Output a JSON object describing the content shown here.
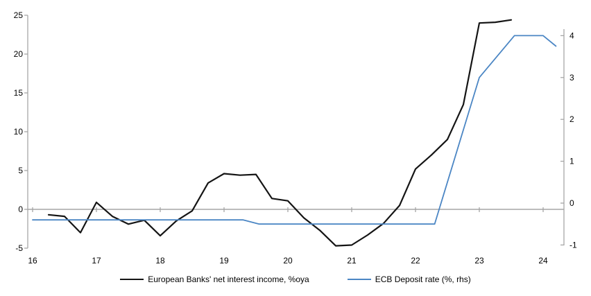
{
  "chart_data": {
    "type": "line",
    "title": "",
    "legend_position": "bottom",
    "grid": "zero-line-only",
    "background_color": "#ffffff",
    "axis_color": "#a6a6a6",
    "x_axis": {
      "ticks": [
        16,
        17,
        18,
        19,
        20,
        21,
        22,
        23,
        24
      ],
      "range": [
        16,
        24.3
      ]
    },
    "y_axis_left": {
      "ticks": [
        -5,
        0,
        5,
        10,
        15,
        20,
        25
      ],
      "range": [
        -5,
        25
      ]
    },
    "y_axis_right": {
      "ticks": [
        -1,
        0,
        1,
        2,
        3,
        4
      ],
      "range": [
        -1,
        4.17
      ]
    },
    "series": [
      {
        "name": "European Banks' net interest income, %oya",
        "color": "#141414",
        "width": 2.2,
        "axis": "left",
        "x": [
          16.25,
          16.5,
          16.75,
          17.0,
          17.25,
          17.5,
          17.75,
          18.0,
          18.25,
          18.5,
          18.75,
          19.0,
          19.25,
          19.5,
          19.75,
          20.0,
          20.25,
          20.5,
          20.75,
          21.0,
          21.25,
          21.5,
          21.75,
          22.0,
          22.25,
          22.5,
          22.75,
          23.0,
          23.25,
          23.5
        ],
        "values": [
          -0.7,
          -0.9,
          -3.0,
          0.9,
          -0.9,
          -1.9,
          -1.4,
          -3.4,
          -1.5,
          -0.2,
          3.4,
          4.6,
          4.4,
          4.5,
          1.4,
          1.1,
          -1.1,
          -2.7,
          -4.7,
          -4.6,
          -3.3,
          -1.8,
          0.5,
          5.2,
          7.0,
          9.0,
          13.5,
          24.0,
          24.1,
          24.4
        ]
      },
      {
        "name": "ECB Deposit rate (%, rhs)",
        "color": "#4b86c4",
        "width": 1.8,
        "axis": "right",
        "x": [
          16.0,
          19.3,
          19.55,
          22.3,
          23.0,
          23.55,
          24.0,
          24.2
        ],
        "values": [
          -0.4,
          -0.4,
          -0.5,
          -0.5,
          3.0,
          4.0,
          4.0,
          3.75
        ]
      }
    ]
  }
}
